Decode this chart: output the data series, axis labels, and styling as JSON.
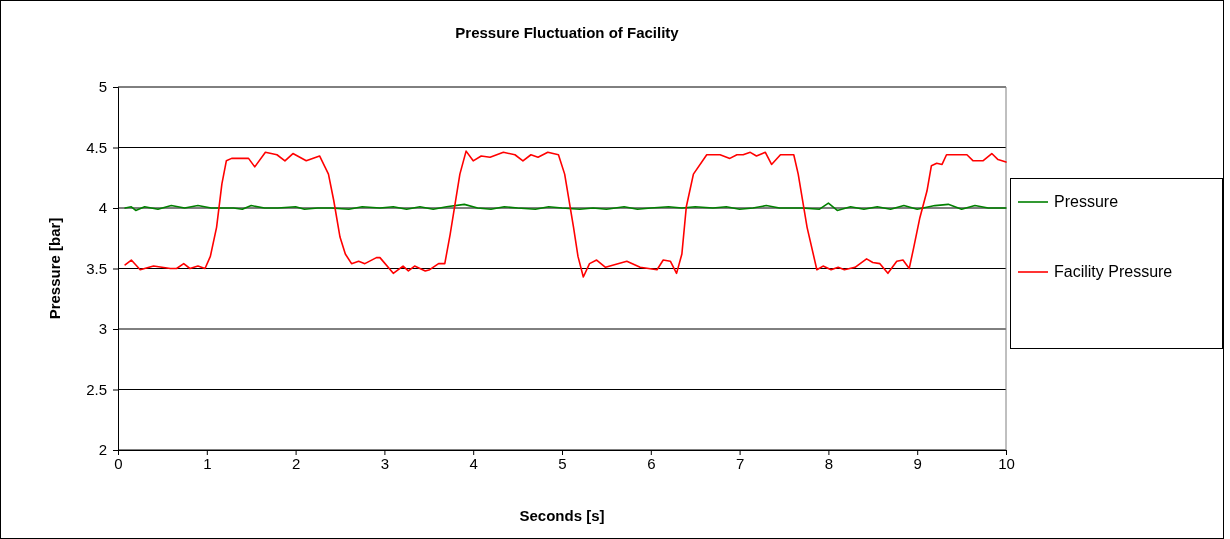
{
  "chart_data": {
    "type": "line",
    "title": "Pressure Fluctuation of Facility",
    "xlabel": "Seconds [s]",
    "ylabel": "Pressure [bar]",
    "xlim": [
      0,
      10
    ],
    "xticks": [
      0,
      1,
      2,
      3,
      4,
      5,
      6,
      7,
      8,
      9,
      10
    ],
    "ylim": [
      2,
      5
    ],
    "yticks": [
      2,
      2.5,
      3,
      3.5,
      4,
      4.5,
      5
    ],
    "grid": "y",
    "legend": "right",
    "marker": "none",
    "line_style": "solid",
    "series": [
      {
        "name": "Pressure",
        "color": "#008000",
        "x": [
          0.08,
          0.15,
          0.2,
          0.3,
          0.45,
          0.6,
          0.75,
          0.9,
          1.05,
          1.3,
          1.4,
          1.5,
          1.65,
          1.8,
          2.0,
          2.1,
          2.25,
          2.4,
          2.6,
          2.75,
          2.95,
          3.1,
          3.25,
          3.4,
          3.55,
          3.7,
          3.9,
          4.05,
          4.2,
          4.35,
          4.5,
          4.7,
          4.85,
          5.0,
          5.2,
          5.35,
          5.5,
          5.7,
          5.85,
          6.0,
          6.2,
          6.35,
          6.5,
          6.7,
          6.85,
          7.0,
          7.15,
          7.3,
          7.45,
          7.7,
          7.9,
          8.0,
          8.1,
          8.25,
          8.4,
          8.55,
          8.7,
          8.85,
          9.0,
          9.2,
          9.35,
          9.5,
          9.65,
          9.8,
          10.0
        ],
        "values": [
          4.0,
          4.01,
          3.98,
          4.01,
          3.99,
          4.02,
          4.0,
          4.02,
          4.0,
          4.0,
          3.99,
          4.02,
          4.0,
          4.0,
          4.01,
          3.99,
          4.0,
          4.0,
          3.99,
          4.01,
          4.0,
          4.01,
          3.99,
          4.01,
          3.99,
          4.01,
          4.03,
          4.0,
          3.99,
          4.01,
          4.0,
          3.99,
          4.01,
          4.0,
          3.99,
          4.0,
          3.99,
          4.01,
          3.99,
          4.0,
          4.01,
          4.0,
          4.01,
          4.0,
          4.01,
          3.99,
          4.0,
          4.02,
          4.0,
          4.0,
          3.99,
          4.04,
          3.98,
          4.01,
          3.99,
          4.01,
          3.99,
          4.02,
          3.99,
          4.02,
          4.03,
          3.99,
          4.02,
          4.0,
          4.0
        ]
      },
      {
        "name": "Facility Pressure",
        "color": "#ff0000",
        "x": [
          0.08,
          0.15,
          0.25,
          0.4,
          0.59,
          0.66,
          0.74,
          0.81,
          0.9,
          0.98,
          1.04,
          1.11,
          1.17,
          1.22,
          1.28,
          1.47,
          1.54,
          1.66,
          1.79,
          1.88,
          1.97,
          2.12,
          2.27,
          2.37,
          2.43,
          2.5,
          2.56,
          2.63,
          2.71,
          2.78,
          2.91,
          2.95,
          3.1,
          3.21,
          3.27,
          3.34,
          3.46,
          3.51,
          3.61,
          3.68,
          3.74,
          3.85,
          3.92,
          4.0,
          4.09,
          4.19,
          4.34,
          4.47,
          4.56,
          4.65,
          4.73,
          4.84,
          4.96,
          5.03,
          5.13,
          5.18,
          5.24,
          5.31,
          5.39,
          5.49,
          5.73,
          5.88,
          6.07,
          6.14,
          6.22,
          6.29,
          6.35,
          6.4,
          6.48,
          6.63,
          6.78,
          6.89,
          6.97,
          7.04,
          7.12,
          7.19,
          7.29,
          7.36,
          7.46,
          7.61,
          7.66,
          7.76,
          7.87,
          7.94,
          8.03,
          8.11,
          8.18,
          8.3,
          8.43,
          8.5,
          8.58,
          8.67,
          8.77,
          8.84,
          8.91,
          8.96,
          9.03,
          9.11,
          9.16,
          9.22,
          9.28,
          9.33,
          9.56,
          9.63,
          9.74,
          9.84,
          9.91,
          10.0
        ],
        "values": [
          3.53,
          3.57,
          3.49,
          3.52,
          3.5,
          3.5,
          3.54,
          3.5,
          3.52,
          3.5,
          3.6,
          3.84,
          4.2,
          4.39,
          4.41,
          4.41,
          4.34,
          4.46,
          4.44,
          4.39,
          4.45,
          4.39,
          4.43,
          4.28,
          4.06,
          3.76,
          3.62,
          3.54,
          3.56,
          3.54,
          3.59,
          3.59,
          3.46,
          3.52,
          3.48,
          3.52,
          3.48,
          3.49,
          3.54,
          3.54,
          3.78,
          4.28,
          4.47,
          4.39,
          4.43,
          4.42,
          4.46,
          4.44,
          4.39,
          4.44,
          4.42,
          4.46,
          4.44,
          4.28,
          3.84,
          3.6,
          3.43,
          3.54,
          3.57,
          3.51,
          3.56,
          3.51,
          3.49,
          3.57,
          3.56,
          3.46,
          3.62,
          4.01,
          4.28,
          4.44,
          4.44,
          4.41,
          4.44,
          4.44,
          4.46,
          4.43,
          4.46,
          4.36,
          4.44,
          4.44,
          4.28,
          3.84,
          3.49,
          3.52,
          3.49,
          3.51,
          3.49,
          3.51,
          3.58,
          3.55,
          3.54,
          3.46,
          3.56,
          3.57,
          3.5,
          3.67,
          3.92,
          4.14,
          4.35,
          4.37,
          4.36,
          4.44,
          4.44,
          4.39,
          4.39,
          4.45,
          4.4,
          4.38
        ]
      }
    ]
  }
}
